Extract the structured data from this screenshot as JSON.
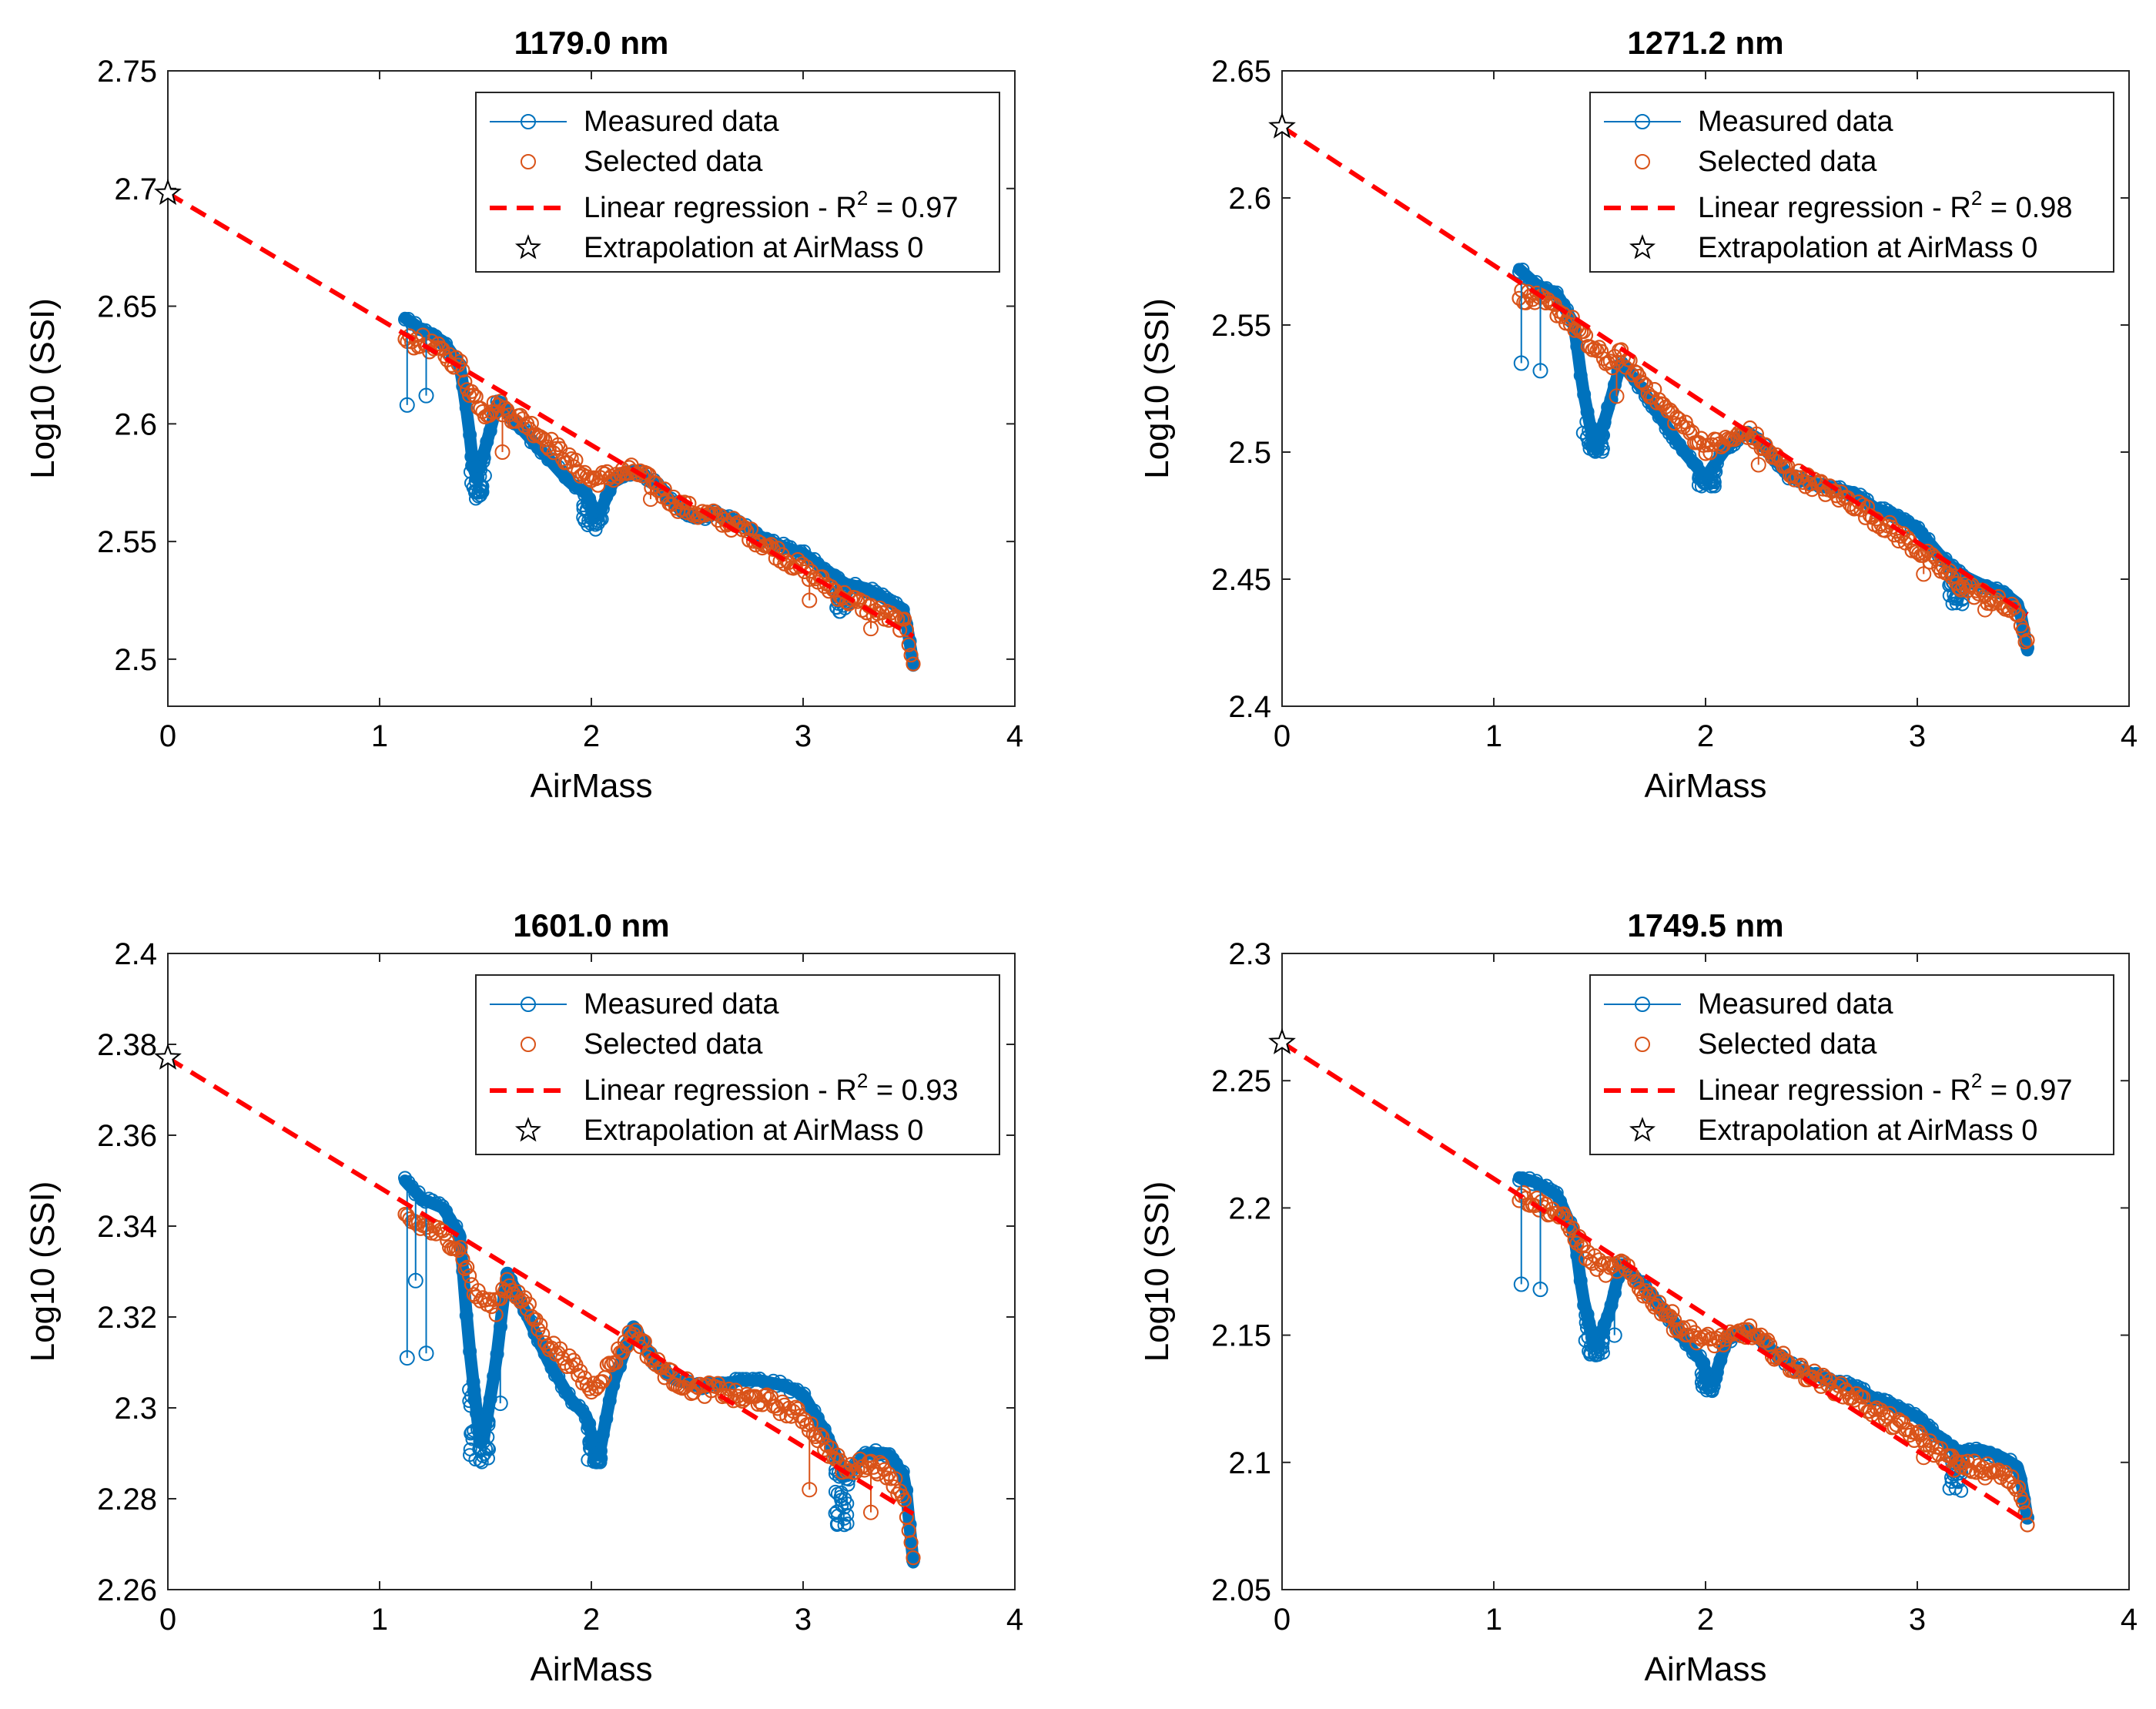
{
  "colors": {
    "measured": "#0072BD",
    "selected": "#D95319",
    "regression": "#FF0000",
    "star_stroke": "#000000"
  },
  "legend": {
    "measured": "Measured data",
    "selected": "Selected data",
    "regression_prefix": "Linear regression - R",
    "regression_sup": "2",
    "extrapolation": "Extrapolation at AirMass 0"
  },
  "chart_data": [
    {
      "type": "scatter",
      "title": "1179.0 nm",
      "xlabel": "AirMass",
      "ylabel": "Log10 (SSI)",
      "xlim": [
        0,
        4
      ],
      "ylim": [
        2.48,
        2.75
      ],
      "xticks": [
        "0",
        "1",
        "2",
        "3",
        "4"
      ],
      "yticks": [
        "2.5",
        "2.55",
        "2.6",
        "2.65",
        "2.7",
        "2.75"
      ],
      "ytick_values": [
        2.5,
        2.55,
        2.6,
        2.65,
        2.7,
        2.75
      ],
      "r2_text": " = 0.97",
      "regression": {
        "intercept": 2.698,
        "slope": -0.0535,
        "x_end": 3.52
      },
      "extrapolation": {
        "x": 0,
        "y": 2.698
      },
      "measured_profile": [
        [
          1.12,
          2.645
        ],
        [
          1.2,
          2.64
        ],
        [
          1.3,
          2.635
        ],
        [
          1.38,
          2.625
        ],
        [
          1.42,
          2.6
        ],
        [
          1.45,
          2.575
        ],
        [
          1.5,
          2.59
        ],
        [
          1.56,
          2.61
        ],
        [
          1.6,
          2.605
        ],
        [
          1.7,
          2.595
        ],
        [
          1.8,
          2.585
        ],
        [
          1.9,
          2.575
        ],
        [
          1.98,
          2.57
        ],
        [
          2.03,
          2.56
        ],
        [
          2.1,
          2.575
        ],
        [
          2.2,
          2.58
        ],
        [
          2.3,
          2.575
        ],
        [
          2.4,
          2.565
        ],
        [
          2.5,
          2.56
        ],
        [
          2.6,
          2.562
        ],
        [
          2.7,
          2.558
        ],
        [
          2.8,
          2.552
        ],
        [
          2.9,
          2.548
        ],
        [
          3.0,
          2.545
        ],
        [
          3.1,
          2.538
        ],
        [
          3.2,
          2.532
        ],
        [
          3.3,
          2.53
        ],
        [
          3.4,
          2.525
        ],
        [
          3.48,
          2.52
        ],
        [
          3.52,
          2.498
        ]
      ],
      "selected_profile": [
        [
          1.12,
          2.635
        ],
        [
          1.2,
          2.635
        ],
        [
          1.3,
          2.63
        ],
        [
          1.38,
          2.625
        ],
        [
          1.42,
          2.615
        ],
        [
          1.5,
          2.605
        ],
        [
          1.56,
          2.608
        ],
        [
          1.6,
          2.605
        ],
        [
          1.7,
          2.6
        ],
        [
          1.8,
          2.592
        ],
        [
          1.9,
          2.584
        ],
        [
          2.0,
          2.576
        ],
        [
          2.1,
          2.578
        ],
        [
          2.2,
          2.58
        ],
        [
          2.3,
          2.574
        ],
        [
          2.4,
          2.566
        ],
        [
          2.5,
          2.562
        ],
        [
          2.6,
          2.56
        ],
        [
          2.7,
          2.556
        ],
        [
          2.8,
          2.55
        ],
        [
          2.9,
          2.544
        ],
        [
          3.0,
          2.538
        ],
        [
          3.1,
          2.532
        ],
        [
          3.2,
          2.526
        ],
        [
          3.3,
          2.522
        ],
        [
          3.4,
          2.518
        ],
        [
          3.48,
          2.514
        ],
        [
          3.52,
          2.5
        ]
      ],
      "dips": [
        [
          1.42,
          1.5,
          2.568
        ],
        [
          1.96,
          2.05,
          2.555
        ],
        [
          3.15,
          3.22,
          2.52
        ]
      ],
      "outliers": [
        [
          1.13,
          2.608,
          "m"
        ],
        [
          1.22,
          2.612,
          "m"
        ],
        [
          1.58,
          2.588,
          "s"
        ],
        [
          3.03,
          2.525,
          "s"
        ],
        [
          3.32,
          2.513,
          "s"
        ],
        [
          2.28,
          2.568,
          "s"
        ]
      ]
    },
    {
      "type": "scatter",
      "title": "1271.2 nm",
      "xlabel": "AirMass",
      "ylabel": "Log10 (SSI)",
      "xlim": [
        0,
        4
      ],
      "ylim": [
        2.4,
        2.65
      ],
      "xticks": [
        "0",
        "1",
        "2",
        "3",
        "4"
      ],
      "yticks": [
        "2.4",
        "2.45",
        "2.5",
        "2.55",
        "2.6",
        "2.65"
      ],
      "ytick_values": [
        2.4,
        2.45,
        2.5,
        2.55,
        2.6,
        2.65
      ],
      "r2_text": " = 0.98",
      "regression": {
        "intercept": 2.628,
        "slope": -0.0545,
        "x_end": 3.52
      },
      "extrapolation": {
        "x": 0,
        "y": 2.628
      },
      "measured_profile": [
        [
          1.12,
          2.572
        ],
        [
          1.2,
          2.566
        ],
        [
          1.3,
          2.562
        ],
        [
          1.38,
          2.55
        ],
        [
          1.42,
          2.525
        ],
        [
          1.48,
          2.5
        ],
        [
          1.55,
          2.52
        ],
        [
          1.6,
          2.535
        ],
        [
          1.7,
          2.525
        ],
        [
          1.8,
          2.512
        ],
        [
          1.9,
          2.5
        ],
        [
          2.0,
          2.49
        ],
        [
          2.1,
          2.502
        ],
        [
          2.2,
          2.508
        ],
        [
          2.3,
          2.5
        ],
        [
          2.4,
          2.49
        ],
        [
          2.5,
          2.488
        ],
        [
          2.6,
          2.486
        ],
        [
          2.7,
          2.484
        ],
        [
          2.8,
          2.478
        ],
        [
          2.9,
          2.475
        ],
        [
          3.0,
          2.47
        ],
        [
          3.1,
          2.46
        ],
        [
          3.2,
          2.452
        ],
        [
          3.3,
          2.448
        ],
        [
          3.4,
          2.445
        ],
        [
          3.48,
          2.44
        ],
        [
          3.52,
          2.422
        ]
      ],
      "selected_profile": [
        [
          1.12,
          2.562
        ],
        [
          1.2,
          2.56
        ],
        [
          1.3,
          2.556
        ],
        [
          1.38,
          2.55
        ],
        [
          1.45,
          2.542
        ],
        [
          1.55,
          2.535
        ],
        [
          1.6,
          2.538
        ],
        [
          1.7,
          2.528
        ],
        [
          1.8,
          2.518
        ],
        [
          1.9,
          2.51
        ],
        [
          2.0,
          2.502
        ],
        [
          2.1,
          2.504
        ],
        [
          2.2,
          2.508
        ],
        [
          2.3,
          2.5
        ],
        [
          2.4,
          2.492
        ],
        [
          2.5,
          2.488
        ],
        [
          2.6,
          2.484
        ],
        [
          2.7,
          2.48
        ],
        [
          2.8,
          2.474
        ],
        [
          2.9,
          2.468
        ],
        [
          3.0,
          2.462
        ],
        [
          3.1,
          2.455
        ],
        [
          3.2,
          2.448
        ],
        [
          3.3,
          2.444
        ],
        [
          3.4,
          2.44
        ],
        [
          3.48,
          2.436
        ],
        [
          3.52,
          2.424
        ]
      ],
      "dips": [
        [
          1.42,
          1.52,
          2.5
        ],
        [
          1.96,
          2.05,
          2.486
        ],
        [
          3.15,
          3.22,
          2.44
        ]
      ],
      "outliers": [
        [
          1.13,
          2.535,
          "m"
        ],
        [
          1.22,
          2.532,
          "m"
        ],
        [
          1.58,
          2.522,
          "s"
        ],
        [
          3.03,
          2.452,
          "s"
        ],
        [
          3.32,
          2.438,
          "s"
        ],
        [
          2.25,
          2.495,
          "s"
        ]
      ]
    },
    {
      "type": "scatter",
      "title": "1601.0 nm",
      "xlabel": "AirMass",
      "ylabel": "Log10 (SSI)",
      "xlim": [
        0,
        4
      ],
      "ylim": [
        2.26,
        2.4
      ],
      "xticks": [
        "0",
        "1",
        "2",
        "3",
        "4"
      ],
      "yticks": [
        "2.26",
        "2.28",
        "2.3",
        "2.32",
        "2.34",
        "2.36",
        "2.38",
        "2.4"
      ],
      "ytick_values": [
        2.26,
        2.28,
        2.3,
        2.32,
        2.34,
        2.36,
        2.38,
        2.4
      ],
      "r2_text": " = 0.93",
      "regression": {
        "intercept": 2.377,
        "slope": -0.0285,
        "x_end": 3.52
      },
      "extrapolation": {
        "x": 0,
        "y": 2.377
      },
      "measured_profile": [
        [
          1.12,
          2.35
        ],
        [
          1.2,
          2.346
        ],
        [
          1.3,
          2.344
        ],
        [
          1.38,
          2.338
        ],
        [
          1.42,
          2.315
        ],
        [
          1.48,
          2.29
        ],
        [
          1.55,
          2.31
        ],
        [
          1.6,
          2.33
        ],
        [
          1.7,
          2.32
        ],
        [
          1.8,
          2.31
        ],
        [
          1.9,
          2.302
        ],
        [
          1.98,
          2.298
        ],
        [
          2.03,
          2.288
        ],
        [
          2.1,
          2.305
        ],
        [
          2.2,
          2.318
        ],
        [
          2.3,
          2.31
        ],
        [
          2.4,
          2.306
        ],
        [
          2.5,
          2.305
        ],
        [
          2.6,
          2.305
        ],
        [
          2.7,
          2.306
        ],
        [
          2.8,
          2.306
        ],
        [
          2.9,
          2.305
        ],
        [
          3.0,
          2.303
        ],
        [
          3.1,
          2.295
        ],
        [
          3.2,
          2.285
        ],
        [
          3.3,
          2.29
        ],
        [
          3.4,
          2.29
        ],
        [
          3.48,
          2.285
        ],
        [
          3.52,
          2.266
        ]
      ],
      "selected_profile": [
        [
          1.12,
          2.342
        ],
        [
          1.2,
          2.34
        ],
        [
          1.3,
          2.338
        ],
        [
          1.38,
          2.335
        ],
        [
          1.45,
          2.325
        ],
        [
          1.55,
          2.322
        ],
        [
          1.6,
          2.328
        ],
        [
          1.7,
          2.322
        ],
        [
          1.8,
          2.314
        ],
        [
          1.9,
          2.31
        ],
        [
          2.0,
          2.304
        ],
        [
          2.1,
          2.31
        ],
        [
          2.2,
          2.317
        ],
        [
          2.3,
          2.31
        ],
        [
          2.4,
          2.306
        ],
        [
          2.5,
          2.304
        ],
        [
          2.6,
          2.304
        ],
        [
          2.7,
          2.302
        ],
        [
          2.8,
          2.302
        ],
        [
          2.9,
          2.3
        ],
        [
          3.0,
          2.298
        ],
        [
          3.1,
          2.292
        ],
        [
          3.2,
          2.286
        ],
        [
          3.3,
          2.288
        ],
        [
          3.4,
          2.286
        ],
        [
          3.48,
          2.28
        ],
        [
          3.52,
          2.266
        ]
      ],
      "dips": [
        [
          1.42,
          1.52,
          2.288
        ],
        [
          1.98,
          2.05,
          2.288
        ],
        [
          3.15,
          3.22,
          2.274
        ]
      ],
      "outliers": [
        [
          1.13,
          2.311,
          "m"
        ],
        [
          1.22,
          2.312,
          "m"
        ],
        [
          1.57,
          2.301,
          "m"
        ],
        [
          3.03,
          2.282,
          "s"
        ],
        [
          3.32,
          2.277,
          "s"
        ],
        [
          1.17,
          2.328,
          "m"
        ]
      ]
    },
    {
      "type": "scatter",
      "title": "1749.5 nm",
      "xlabel": "AirMass",
      "ylabel": "Log10 (SSI)",
      "xlim": [
        0,
        4
      ],
      "ylim": [
        2.05,
        2.3
      ],
      "xticks": [
        "0",
        "1",
        "2",
        "3",
        "4"
      ],
      "yticks": [
        "2.05",
        "2.1",
        "2.15",
        "2.2",
        "2.25",
        "2.3"
      ],
      "ytick_values": [
        2.05,
        2.1,
        2.15,
        2.2,
        2.25,
        2.3
      ],
      "r2_text": " = 0.97",
      "regression": {
        "intercept": 2.265,
        "slope": -0.0535,
        "x_end": 3.52
      },
      "extrapolation": {
        "x": 0,
        "y": 2.265
      },
      "measured_profile": [
        [
          1.12,
          2.212
        ],
        [
          1.2,
          2.21
        ],
        [
          1.3,
          2.205
        ],
        [
          1.38,
          2.19
        ],
        [
          1.42,
          2.165
        ],
        [
          1.48,
          2.145
        ],
        [
          1.55,
          2.16
        ],
        [
          1.6,
          2.178
        ],
        [
          1.7,
          2.17
        ],
        [
          1.8,
          2.16
        ],
        [
          1.9,
          2.148
        ],
        [
          1.98,
          2.14
        ],
        [
          2.03,
          2.13
        ],
        [
          2.1,
          2.148
        ],
        [
          2.2,
          2.152
        ],
        [
          2.3,
          2.145
        ],
        [
          2.4,
          2.138
        ],
        [
          2.5,
          2.135
        ],
        [
          2.6,
          2.132
        ],
        [
          2.7,
          2.13
        ],
        [
          2.8,
          2.125
        ],
        [
          2.9,
          2.122
        ],
        [
          3.0,
          2.118
        ],
        [
          3.1,
          2.11
        ],
        [
          3.2,
          2.104
        ],
        [
          3.3,
          2.105
        ],
        [
          3.4,
          2.102
        ],
        [
          3.48,
          2.098
        ],
        [
          3.52,
          2.078
        ]
      ],
      "selected_profile": [
        [
          1.12,
          2.205
        ],
        [
          1.2,
          2.202
        ],
        [
          1.3,
          2.198
        ],
        [
          1.38,
          2.19
        ],
        [
          1.45,
          2.18
        ],
        [
          1.55,
          2.175
        ],
        [
          1.6,
          2.178
        ],
        [
          1.7,
          2.168
        ],
        [
          1.8,
          2.16
        ],
        [
          1.9,
          2.152
        ],
        [
          2.0,
          2.148
        ],
        [
          2.1,
          2.148
        ],
        [
          2.2,
          2.152
        ],
        [
          2.3,
          2.145
        ],
        [
          2.4,
          2.138
        ],
        [
          2.5,
          2.134
        ],
        [
          2.6,
          2.13
        ],
        [
          2.7,
          2.126
        ],
        [
          2.8,
          2.12
        ],
        [
          2.9,
          2.115
        ],
        [
          3.0,
          2.11
        ],
        [
          3.1,
          2.104
        ],
        [
          3.2,
          2.098
        ],
        [
          3.3,
          2.098
        ],
        [
          3.4,
          2.095
        ],
        [
          3.48,
          2.09
        ],
        [
          3.52,
          2.078
        ]
      ],
      "dips": [
        [
          1.42,
          1.52,
          2.142
        ],
        [
          1.98,
          2.05,
          2.128
        ],
        [
          3.15,
          3.22,
          2.088
        ]
      ],
      "outliers": [
        [
          1.13,
          2.17,
          "m"
        ],
        [
          1.22,
          2.168,
          "m"
        ],
        [
          1.57,
          2.15,
          "m"
        ],
        [
          3.03,
          2.102,
          "s"
        ],
        [
          3.32,
          2.094,
          "s"
        ],
        [
          1.85,
          2.152,
          "s"
        ]
      ]
    }
  ]
}
